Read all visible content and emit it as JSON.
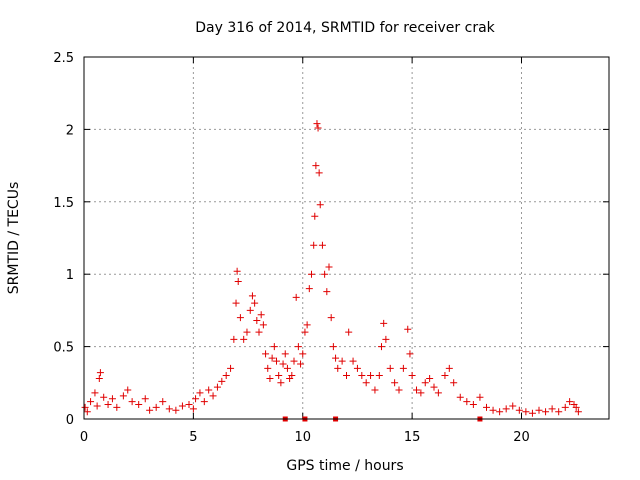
{
  "chart_data": {
    "type": "scatter",
    "title": "Day 316 of 2014, SRMTID for receiver crak",
    "xlabel": "GPS time / hours",
    "ylabel": "SRMTID / TECUs",
    "xlim": [
      0,
      24
    ],
    "ylim": [
      0,
      2.5
    ],
    "xticks": [
      0,
      5,
      10,
      15,
      20
    ],
    "yticks": [
      0,
      0.5,
      1,
      1.5,
      2,
      2.5
    ],
    "ytick_labels": [
      "0",
      "0.5",
      "1",
      "1.5",
      "2",
      "2.5"
    ],
    "grid": true,
    "marker": "+",
    "color": "#e00000",
    "series": [
      {
        "name": "SRMTID",
        "points": [
          [
            0.05,
            0.08
          ],
          [
            0.15,
            0.05
          ],
          [
            0.3,
            0.12
          ],
          [
            0.5,
            0.18
          ],
          [
            0.6,
            0.09
          ],
          [
            0.7,
            0.28
          ],
          [
            0.75,
            0.32
          ],
          [
            0.9,
            0.15
          ],
          [
            1.1,
            0.1
          ],
          [
            1.3,
            0.14
          ],
          [
            1.5,
            0.08
          ],
          [
            1.8,
            0.16
          ],
          [
            2.0,
            0.2
          ],
          [
            2.2,
            0.12
          ],
          [
            2.5,
            0.1
          ],
          [
            2.8,
            0.14
          ],
          [
            3.0,
            0.06
          ],
          [
            3.3,
            0.08
          ],
          [
            3.6,
            0.12
          ],
          [
            3.9,
            0.07
          ],
          [
            4.2,
            0.06
          ],
          [
            4.5,
            0.09
          ],
          [
            4.8,
            0.1
          ],
          [
            5.0,
            0.07
          ],
          [
            5.1,
            0.14
          ],
          [
            5.3,
            0.18
          ],
          [
            5.5,
            0.12
          ],
          [
            5.7,
            0.2
          ],
          [
            5.9,
            0.16
          ],
          [
            6.1,
            0.22
          ],
          [
            6.3,
            0.26
          ],
          [
            6.5,
            0.3
          ],
          [
            6.7,
            0.35
          ],
          [
            6.85,
            0.55
          ],
          [
            6.95,
            0.8
          ],
          [
            7.0,
            1.02
          ],
          [
            7.05,
            0.95
          ],
          [
            7.15,
            0.7
          ],
          [
            7.3,
            0.55
          ],
          [
            7.45,
            0.6
          ],
          [
            7.6,
            0.75
          ],
          [
            7.7,
            0.85
          ],
          [
            7.8,
            0.8
          ],
          [
            7.9,
            0.68
          ],
          [
            8.0,
            0.6
          ],
          [
            8.1,
            0.72
          ],
          [
            8.2,
            0.65
          ],
          [
            8.3,
            0.45
          ],
          [
            8.4,
            0.35
          ],
          [
            8.5,
            0.28
          ],
          [
            8.6,
            0.42
          ],
          [
            8.7,
            0.5
          ],
          [
            8.8,
            0.4
          ],
          [
            8.9,
            0.3
          ],
          [
            9.0,
            0.25
          ],
          [
            9.1,
            0.38
          ],
          [
            9.2,
            0.45
          ],
          [
            9.3,
            0.35
          ],
          [
            9.4,
            0.28
          ],
          [
            9.5,
            0.3
          ],
          [
            9.6,
            0.4
          ],
          [
            9.7,
            0.84
          ],
          [
            9.8,
            0.5
          ],
          [
            9.9,
            0.38
          ],
          [
            10.0,
            0.45
          ],
          [
            10.1,
            0.6
          ],
          [
            10.2,
            0.65
          ],
          [
            10.3,
            0.9
          ],
          [
            10.4,
            1.0
          ],
          [
            10.5,
            1.2
          ],
          [
            10.55,
            1.4
          ],
          [
            10.6,
            1.75
          ],
          [
            10.65,
            2.04
          ],
          [
            10.7,
            2.01
          ],
          [
            10.75,
            1.7
          ],
          [
            10.8,
            1.48
          ],
          [
            10.9,
            1.2
          ],
          [
            11.0,
            1.0
          ],
          [
            11.1,
            0.88
          ],
          [
            11.2,
            1.05
          ],
          [
            11.3,
            0.7
          ],
          [
            11.4,
            0.5
          ],
          [
            11.5,
            0.42
          ],
          [
            11.6,
            0.35
          ],
          [
            11.8,
            0.4
          ],
          [
            12.0,
            0.3
          ],
          [
            12.1,
            0.6
          ],
          [
            12.3,
            0.4
          ],
          [
            12.5,
            0.35
          ],
          [
            12.7,
            0.3
          ],
          [
            12.9,
            0.25
          ],
          [
            13.1,
            0.3
          ],
          [
            13.3,
            0.2
          ],
          [
            13.5,
            0.3
          ],
          [
            13.6,
            0.5
          ],
          [
            13.7,
            0.66
          ],
          [
            13.8,
            0.55
          ],
          [
            14.0,
            0.35
          ],
          [
            14.2,
            0.25
          ],
          [
            14.4,
            0.2
          ],
          [
            14.6,
            0.35
          ],
          [
            14.8,
            0.62
          ],
          [
            14.9,
            0.45
          ],
          [
            15.0,
            0.3
          ],
          [
            15.2,
            0.2
          ],
          [
            15.4,
            0.18
          ],
          [
            15.6,
            0.25
          ],
          [
            15.8,
            0.28
          ],
          [
            16.0,
            0.22
          ],
          [
            16.2,
            0.18
          ],
          [
            16.5,
            0.3
          ],
          [
            16.7,
            0.35
          ],
          [
            16.9,
            0.25
          ],
          [
            17.2,
            0.15
          ],
          [
            17.5,
            0.12
          ],
          [
            17.8,
            0.1
          ],
          [
            18.1,
            0.15
          ],
          [
            18.4,
            0.08
          ],
          [
            18.7,
            0.06
          ],
          [
            19.0,
            0.05
          ],
          [
            19.3,
            0.07
          ],
          [
            19.6,
            0.09
          ],
          [
            19.9,
            0.06
          ],
          [
            20.2,
            0.05
          ],
          [
            20.5,
            0.04
          ],
          [
            20.8,
            0.06
          ],
          [
            21.1,
            0.05
          ],
          [
            21.4,
            0.07
          ],
          [
            21.7,
            0.05
          ],
          [
            22.0,
            0.08
          ],
          [
            22.2,
            0.12
          ],
          [
            22.4,
            0.1
          ],
          [
            22.5,
            0.08
          ],
          [
            22.6,
            0.05
          ]
        ]
      }
    ],
    "zero_markers": [
      9.2,
      10.1,
      11.5,
      18.1
    ]
  }
}
